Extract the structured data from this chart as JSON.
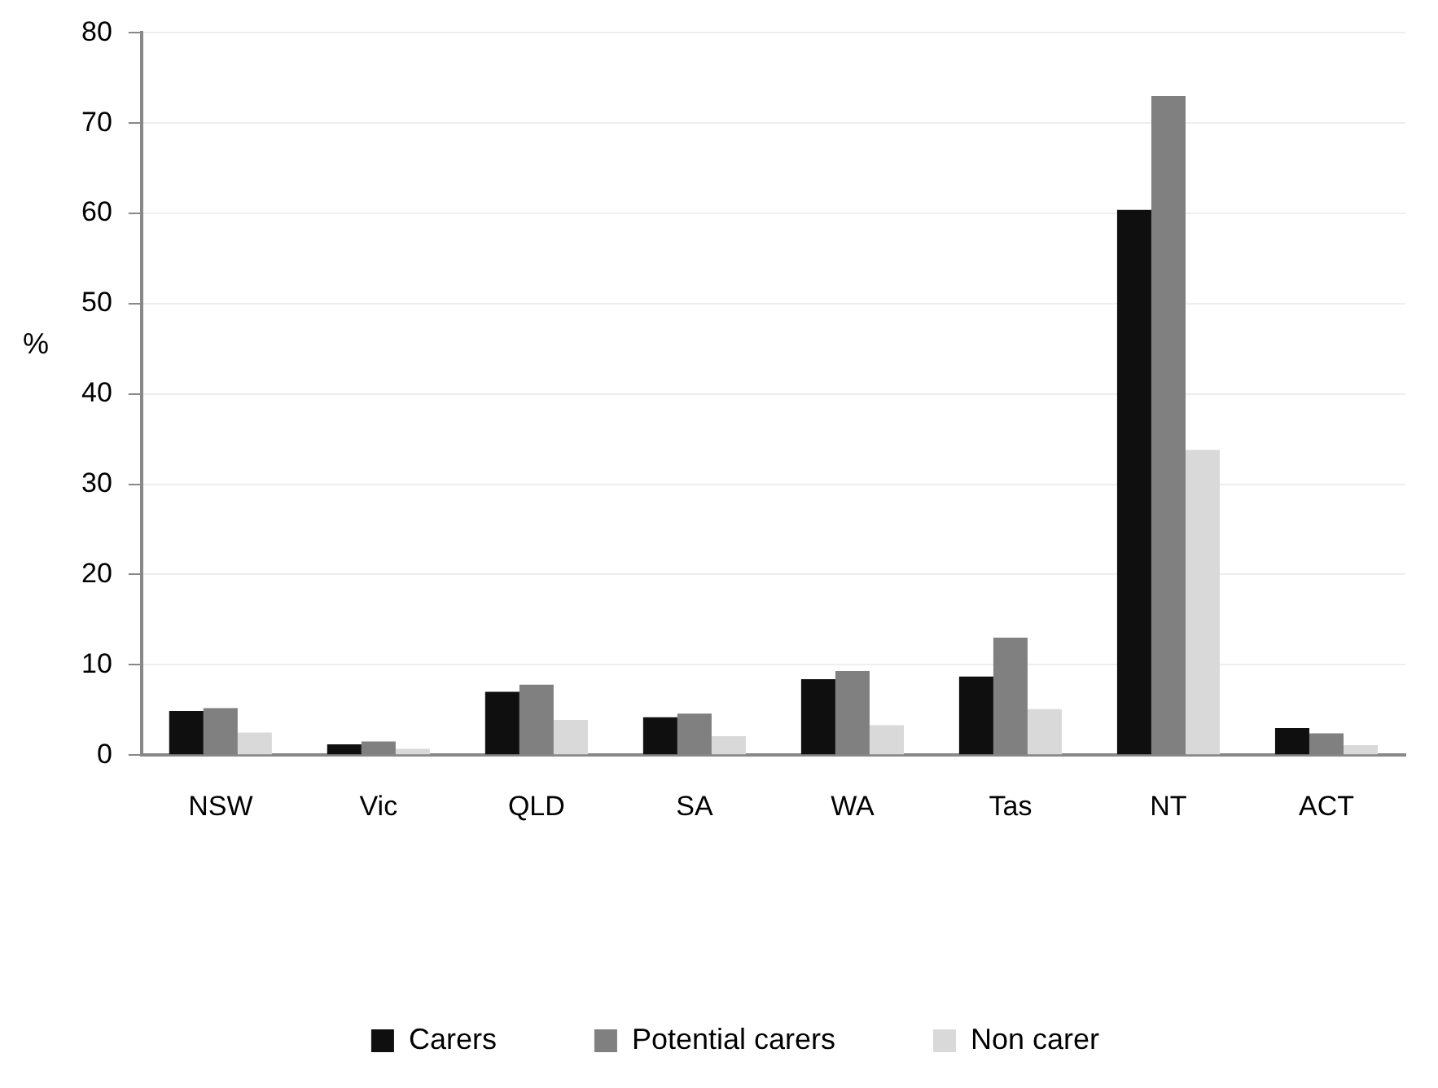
{
  "chart_data": {
    "type": "bar",
    "ylabel": "%",
    "categories": [
      "NSW",
      "Vic",
      "QLD",
      "SA",
      "WA",
      "Tas",
      "NT",
      "ACT"
    ],
    "series": [
      {
        "name": "Carers",
        "color": "#0f0f0f",
        "values": [
          4.9,
          1.2,
          7.0,
          4.2,
          8.4,
          8.7,
          60.4,
          3.0
        ]
      },
      {
        "name": "Potential carers",
        "color": "#808080",
        "values": [
          5.2,
          1.5,
          7.8,
          4.6,
          9.3,
          13.0,
          73.0,
          2.4
        ]
      },
      {
        "name": "Non carer",
        "color": "#d9d9d9",
        "values": [
          2.5,
          0.7,
          3.9,
          2.1,
          3.3,
          5.1,
          33.8,
          1.1
        ]
      }
    ],
    "ylim": [
      0,
      80
    ],
    "yticks": [
      0,
      10,
      20,
      30,
      40,
      50,
      60,
      70,
      80
    ],
    "grid": "y",
    "legend": "bottom"
  }
}
